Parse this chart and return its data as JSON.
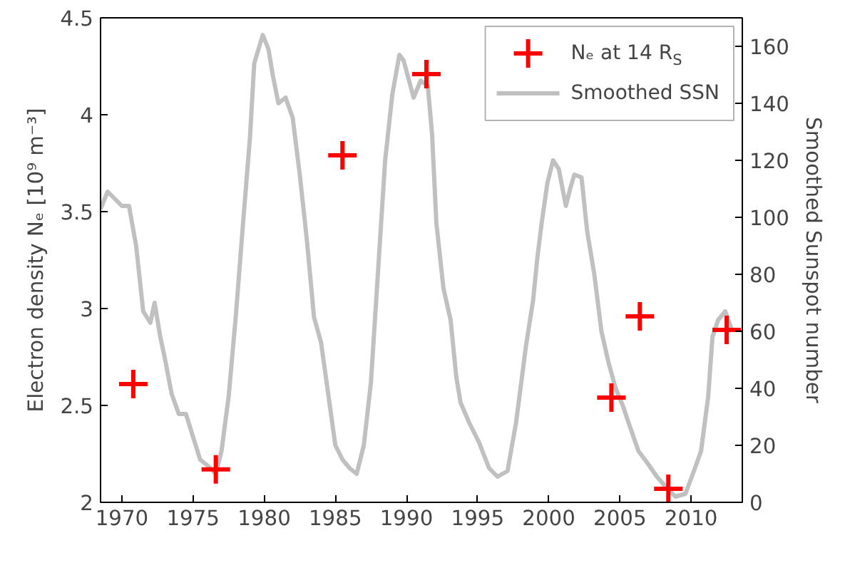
{
  "chart_data": {
    "type": "scatter",
    "ylabel": "Electron density Nₑ [10⁹ m⁻³]",
    "y2label": "Smoothed Sunspot number",
    "xlim": [
      1968.5,
      2013.6
    ],
    "xticks": [
      1970,
      1975,
      1980,
      1985,
      1990,
      1995,
      2000,
      2005,
      2010
    ],
    "ylim": [
      2,
      4.5
    ],
    "yticks": [
      2,
      2.5,
      3,
      3.5,
      4,
      4.5
    ],
    "y2lim": [
      0,
      170
    ],
    "y2ticks": [
      0,
      20,
      40,
      60,
      80,
      100,
      120,
      140,
      160
    ],
    "legend": "top right",
    "grid": false,
    "series": [
      {
        "name": "Nₑ at 14 R$_{S}$",
        "marker": "cross",
        "color": "#ff0000",
        "x": [
          1970.8,
          1976.6,
          1985.5,
          1991.4,
          2004.4,
          2006.4,
          2008.4,
          2012.5
        ],
        "values": [
          2.61,
          2.17,
          3.79,
          4.21,
          2.54,
          2.96,
          2.07,
          2.89
        ]
      },
      {
        "name": "Smoothed SSN",
        "type": "line",
        "axis": "y2",
        "color": "#c0c0c0",
        "x": [
          1968.5,
          1969,
          1970,
          1970.5,
          1971,
          1971.5,
          1972,
          1972.3,
          1972.7,
          1973,
          1973.5,
          1974,
          1974.5,
          1975,
          1975.5,
          1976,
          1976.6,
          1977,
          1977.5,
          1978,
          1978.5,
          1979,
          1979.3,
          1979.9,
          1980.3,
          1980.6,
          1981,
          1981.5,
          1982,
          1982.5,
          1983,
          1983.5,
          1984,
          1984.5,
          1985,
          1985.5,
          1986,
          1986.5,
          1987,
          1987.5,
          1988,
          1988.5,
          1989,
          1989.5,
          1989.8,
          1990.5,
          1991.0,
          1991.5,
          1991.8,
          1992.1,
          1992.6,
          1993.1,
          1993.5,
          1993.8,
          1994.4,
          1995.1,
          1995.8,
          1996.4,
          1997.1,
          1997.7,
          1998.4,
          1998.9,
          1999.2,
          1999.5,
          1999.9,
          2000.3,
          2000.7,
          2001.2,
          2001.5,
          2001.8,
          2002.3,
          2002.7,
          2003.2,
          2003.7,
          2004.2,
          2004.7,
          2005.2,
          2005.6,
          2006.3,
          2006.9,
          2007.6,
          2008.3,
          2008.9,
          2009.6,
          2010.2,
          2010.7,
          2011.2,
          2011.5,
          2011.9,
          2012.4,
          2012.9
        ],
        "values": [
          103,
          109,
          104,
          104,
          90,
          67,
          63,
          70,
          58,
          51,
          38,
          31,
          31,
          23,
          15,
          13,
          10,
          18,
          37,
          65,
          97,
          128,
          154,
          164,
          159,
          150,
          140,
          142,
          135,
          115,
          92,
          65,
          56,
          38,
          20,
          15,
          12,
          10,
          20,
          42,
          81,
          120,
          143,
          157,
          155,
          142,
          148,
          146,
          129,
          98,
          75,
          64,
          44,
          35,
          28,
          21,
          12,
          9,
          11,
          28,
          55,
          71,
          86,
          98,
          112,
          120,
          117,
          104,
          110,
          115,
          114,
          95,
          80,
          60,
          49,
          40,
          34,
          28,
          18,
          14,
          9,
          5,
          2,
          3,
          11,
          18,
          37,
          58,
          64,
          67,
          60
        ]
      }
    ]
  }
}
